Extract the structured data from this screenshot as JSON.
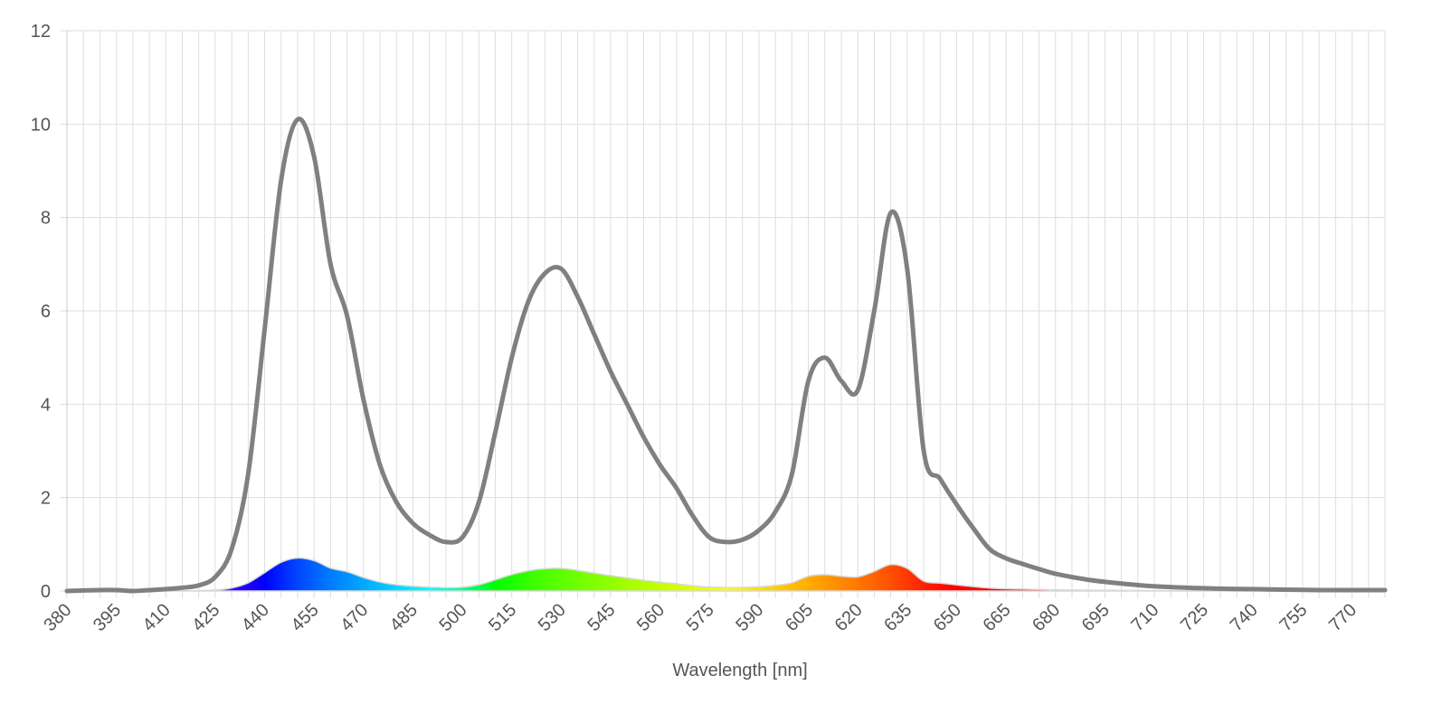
{
  "chart_data": {
    "type": "line",
    "xlabel": "Wavelength [nm]",
    "ylabel": "",
    "title": "",
    "xlim": [
      380,
      780
    ],
    "ylim": [
      0,
      12
    ],
    "x_ticks": [
      380,
      395,
      410,
      425,
      440,
      455,
      470,
      485,
      500,
      515,
      530,
      545,
      560,
      575,
      590,
      605,
      620,
      635,
      650,
      665,
      680,
      695,
      710,
      725,
      740,
      755,
      770
    ],
    "y_ticks": [
      0,
      2,
      4,
      6,
      8,
      10,
      12
    ],
    "grid": true,
    "colors": {
      "line": "#808080",
      "grid": "#dddddd",
      "axis_text": "#555555"
    },
    "spectrum_fill": {
      "visible": true,
      "scale": 0.07
    },
    "series": [
      {
        "line_color": "#808080",
        "x": [
          380,
          390,
          395,
          400,
          405,
          410,
          415,
          420,
          425,
          430,
          435,
          440,
          445,
          450,
          455,
          460,
          465,
          470,
          475,
          480,
          485,
          490,
          495,
          500,
          505,
          510,
          515,
          520,
          525,
          530,
          535,
          540,
          545,
          550,
          555,
          560,
          565,
          570,
          575,
          580,
          585,
          590,
          595,
          600,
          605,
          610,
          615,
          620,
          625,
          630,
          635,
          640,
          645,
          650,
          655,
          660,
          665,
          670,
          675,
          680,
          690,
          700,
          710,
          720,
          730,
          740,
          750,
          760,
          770,
          780
        ],
        "y": [
          0.0,
          0.02,
          0.02,
          0.0,
          0.02,
          0.04,
          0.07,
          0.12,
          0.3,
          0.9,
          2.5,
          5.6,
          8.8,
          10.1,
          9.3,
          7.0,
          5.9,
          4.1,
          2.7,
          1.9,
          1.45,
          1.2,
          1.05,
          1.15,
          1.9,
          3.4,
          5.0,
          6.2,
          6.8,
          6.9,
          6.3,
          5.5,
          4.7,
          4.0,
          3.3,
          2.7,
          2.2,
          1.6,
          1.15,
          1.05,
          1.1,
          1.3,
          1.7,
          2.5,
          4.5,
          5.0,
          4.5,
          4.3,
          6.0,
          8.1,
          6.9,
          3.0,
          2.4,
          1.85,
          1.35,
          0.9,
          0.7,
          0.58,
          0.47,
          0.37,
          0.24,
          0.16,
          0.1,
          0.07,
          0.05,
          0.04,
          0.03,
          0.02,
          0.02,
          0.02
        ]
      }
    ]
  }
}
